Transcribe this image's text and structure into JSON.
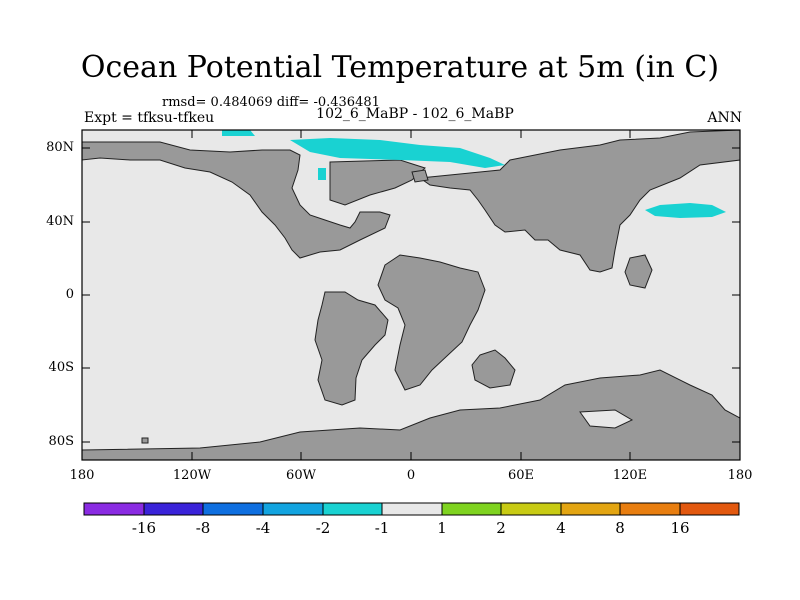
{
  "title": "Ocean Potential Temperature at 5m (in C)",
  "stats": "rmsd= 0.484069 diff= -0.436481",
  "expt_label": "Expt = tfksu-tfkeu",
  "center_label": "102_6_MaBP - 102_6_MaBP",
  "season_label": "ANN",
  "x_ticks": [
    "180",
    "120W",
    "60W",
    "0",
    "60E",
    "120E",
    "180"
  ],
  "y_ticks": [
    "80N",
    "40N",
    "0",
    "40S",
    "80S"
  ],
  "colorbar": {
    "colors": [
      "#8a2be2",
      "#3a23d9",
      "#0f6fe0",
      "#12a4e0",
      "#19d2d2",
      "#e8e8e8",
      "#7fd320",
      "#c8cb14",
      "#e3a512",
      "#e87e10",
      "#e2580f",
      "#d9280e"
    ],
    "labels": [
      "-16",
      "-8",
      "-4",
      "-2",
      "-1",
      "1",
      "2",
      "4",
      "8",
      "16"
    ]
  },
  "colors": {
    "land": "#999999",
    "ocean": "#e8e8e8",
    "anomaly": "#19d2d2"
  }
}
